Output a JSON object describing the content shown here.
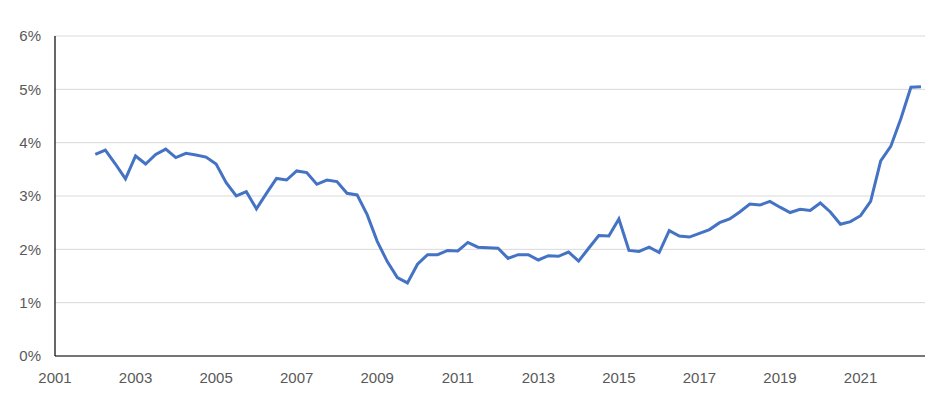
{
  "chart_data": {
    "type": "line",
    "x": [
      2002.0,
      2002.25,
      2002.5,
      2002.75,
      2003.0,
      2003.25,
      2003.5,
      2003.75,
      2004.0,
      2004.25,
      2004.5,
      2004.75,
      2005.0,
      2005.25,
      2005.5,
      2005.75,
      2006.0,
      2006.25,
      2006.5,
      2006.75,
      2007.0,
      2007.25,
      2007.5,
      2007.75,
      2008.0,
      2008.25,
      2008.5,
      2008.75,
      2009.0,
      2009.25,
      2009.5,
      2009.75,
      2010.0,
      2010.25,
      2010.5,
      2010.75,
      2011.0,
      2011.25,
      2011.5,
      2011.75,
      2012.0,
      2012.25,
      2012.5,
      2012.75,
      2013.0,
      2013.25,
      2013.5,
      2013.75,
      2014.0,
      2014.25,
      2014.5,
      2014.75,
      2015.0,
      2015.25,
      2015.5,
      2015.75,
      2016.0,
      2016.25,
      2016.5,
      2016.75,
      2017.0,
      2017.25,
      2017.5,
      2017.75,
      2018.0,
      2018.25,
      2018.5,
      2018.75,
      2019.0,
      2019.25,
      2019.5,
      2019.75,
      2020.0,
      2020.25,
      2020.5,
      2020.75,
      2021.0,
      2021.25,
      2021.5,
      2021.75,
      2022.0,
      2022.25,
      2022.5
    ],
    "values": [
      3.78,
      3.86,
      3.6,
      3.32,
      3.75,
      3.6,
      3.78,
      3.88,
      3.72,
      3.8,
      3.77,
      3.73,
      3.6,
      3.25,
      3.0,
      3.08,
      2.76,
      3.05,
      3.33,
      3.3,
      3.47,
      3.44,
      3.22,
      3.3,
      3.27,
      3.05,
      3.02,
      2.65,
      2.15,
      1.77,
      1.47,
      1.37,
      1.72,
      1.9,
      1.9,
      1.98,
      1.97,
      2.13,
      2.04,
      2.03,
      2.02,
      1.83,
      1.9,
      1.9,
      1.8,
      1.88,
      1.87,
      1.95,
      1.78,
      2.02,
      2.26,
      2.25,
      2.57,
      1.98,
      1.96,
      2.04,
      1.94,
      2.35,
      2.25,
      2.23,
      2.3,
      2.37,
      2.5,
      2.57,
      2.7,
      2.85,
      2.83,
      2.9,
      2.79,
      2.69,
      2.75,
      2.73,
      2.87,
      2.7,
      2.47,
      2.52,
      2.63,
      2.9,
      3.66,
      3.93,
      4.45,
      5.04,
      5.05
    ],
    "color": "#4472c4",
    "xlim": [
      2001,
      2022.6
    ],
    "xticks": [
      2001,
      2003,
      2005,
      2007,
      2009,
      2011,
      2013,
      2015,
      2017,
      2019,
      2021
    ],
    "ylim": [
      0,
      6
    ],
    "yticks": [
      {
        "value": 0,
        "label": "0%"
      },
      {
        "value": 1,
        "label": "1%"
      },
      {
        "value": 2,
        "label": "2%"
      },
      {
        "value": 3,
        "label": "3%"
      },
      {
        "value": 4,
        "label": "4%"
      },
      {
        "value": 5,
        "label": "5%"
      },
      {
        "value": 6,
        "label": "6%"
      }
    ],
    "grid": true
  }
}
